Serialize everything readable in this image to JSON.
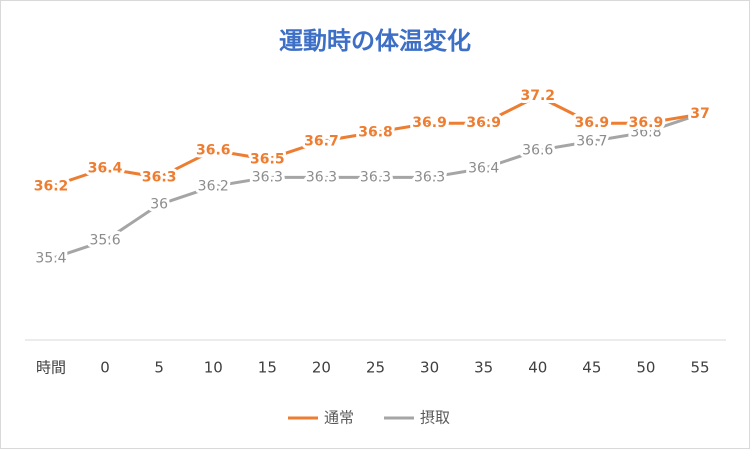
{
  "chart_data": {
    "type": "line",
    "title": "運動時の体温変化",
    "categories": [
      "時間",
      "0",
      "5",
      "10",
      "15",
      "20",
      "25",
      "30",
      "35",
      "40",
      "45",
      "50",
      "55"
    ],
    "series": [
      {
        "name": "通常",
        "color": "#ed7d31",
        "values": [
          36.2,
          36.4,
          36.3,
          36.6,
          36.5,
          36.7,
          36.8,
          36.9,
          36.9,
          37.2,
          36.9,
          36.9,
          37
        ]
      },
      {
        "name": "摂取",
        "color": "#a5a5a5",
        "values": [
          35.4,
          35.6,
          36,
          36.2,
          36.3,
          36.3,
          36.3,
          36.3,
          36.4,
          36.6,
          36.7,
          36.8,
          37
        ]
      }
    ],
    "ylim": [
      34.5,
      37.6
    ],
    "legend": "bottom"
  }
}
